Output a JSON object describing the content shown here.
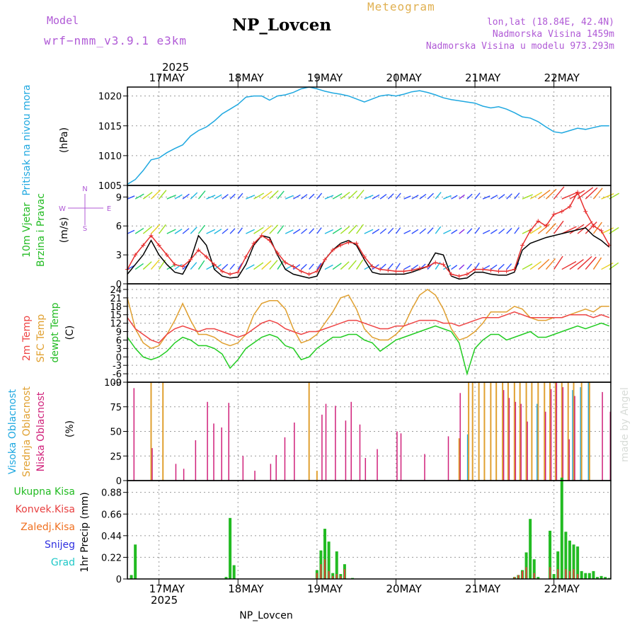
{
  "header": {
    "model_label": "Model",
    "model_name": "wrf−nmm_v3.9.1  e3km",
    "title": "NP_Lovcen",
    "meteogram_label": "Meteogram",
    "lonlat": "lon,lat (18.84E, 42.4N)",
    "altitude": "Nadmorska Visina 1459m",
    "model_altitude": "Nadmorska Visina u modelu 973.293m",
    "footer_station": "NP_Lovcen",
    "watermark": "made by Angel"
  },
  "colors": {
    "pressure": "#1fa8e0",
    "wind_speed": "#e83030",
    "wind_gust": "#000000",
    "temp2m": "#ee4444",
    "sfc_temp": "#e0a030",
    "dewpt": "#22cc22",
    "high_cloud": "#1fa8e0",
    "mid_cloud": "#e0a030",
    "low_cloud": "#d0207a",
    "total_precip": "#22bb22",
    "conv_precip": "#e84040",
    "frozen_precip": "#f07020",
    "snow": "#3030e0",
    "hail": "#20c8c8",
    "grid": "#999999",
    "label_purple": "#b05ad6"
  },
  "axis": {
    "year": "2025",
    "days": [
      "17MAY",
      "18MAY",
      "19MAY",
      "20MAY",
      "21MAY",
      "22MAY"
    ],
    "start_day_fraction": -0.4,
    "end_day_fraction": 5.72
  },
  "panels": {
    "pressure": {
      "label1": "Pritisak na nivou mora",
      "unit": "(hPa)",
      "ticks": [
        "1005",
        "1010",
        "1015",
        "1020"
      ],
      "ylim": [
        1005,
        1021.5
      ]
    },
    "wind": {
      "label1": "10m Vjetar",
      "label2": "Brzina i Pravac",
      "unit": "(m/s)",
      "ticks": [
        "0",
        "3",
        "6",
        "9"
      ],
      "ylim": [
        0,
        10.2
      ],
      "compass": {
        "n": "N",
        "w": "W",
        "e": "E",
        "s": "S"
      }
    },
    "temperature": {
      "label1": "2m Temp",
      "label2": "SFC Temp",
      "label3": "dewpt Temp",
      "unit": "(C)",
      "ticks": [
        "-9",
        "-6",
        "-3",
        "0",
        "3",
        "6",
        "9",
        "12",
        "15",
        "18",
        "21",
        "24"
      ],
      "ylim": [
        -9,
        26
      ]
    },
    "clouds": {
      "label1": "Visoka Oblacnost",
      "label2": "Srednja Oblacnost",
      "label3": "Niska Oblacnost",
      "unit": "(%)",
      "ticks": [
        "0",
        "25",
        "50",
        "75",
        "100"
      ],
      "ylim": [
        0,
        100
      ]
    },
    "precip": {
      "legend": [
        "Ukupna Kisa",
        "Konvek.Kisa",
        "Zaledj.Kisa",
        "Snijeg",
        "Grad"
      ],
      "unit": "1hr Precip (mm)",
      "ticks": [
        "0",
        "0.22",
        "0.44",
        "0.66",
        "0.88"
      ],
      "ylim": [
        0,
        1.0
      ]
    }
  },
  "chart_data": [
    {
      "type": "line",
      "title": "Pritisak na nivou mora",
      "ylabel": "hPa",
      "x_unit": "days since 17MAY 00UTC",
      "x": [
        -0.4,
        -0.3,
        -0.2,
        -0.1,
        0,
        0.1,
        0.2,
        0.3,
        0.4,
        0.5,
        0.6,
        0.7,
        0.8,
        0.9,
        1.0,
        1.1,
        1.2,
        1.3,
        1.4,
        1.5,
        1.6,
        1.7,
        1.8,
        1.9,
        2.0,
        2.1,
        2.2,
        2.3,
        2.4,
        2.5,
        2.6,
        2.7,
        2.8,
        2.9,
        3.0,
        3.1,
        3.2,
        3.3,
        3.4,
        3.5,
        3.6,
        3.7,
        3.8,
        3.9,
        4.0,
        4.1,
        4.2,
        4.3,
        4.4,
        4.5,
        4.6,
        4.7,
        4.8,
        4.9,
        5.0,
        5.1,
        5.2,
        5.3,
        5.4,
        5.5,
        5.6,
        5.7
      ],
      "values": [
        1005.2,
        1006.0,
        1007.5,
        1009.3,
        1009.6,
        1010.5,
        1011.2,
        1011.8,
        1013.3,
        1014.2,
        1014.8,
        1015.8,
        1017.0,
        1017.8,
        1018.6,
        1019.8,
        1020.0,
        1020.0,
        1019.3,
        1020.0,
        1020.2,
        1020.6,
        1021.2,
        1021.7,
        1021.2,
        1020.8,
        1020.5,
        1020.3,
        1020.0,
        1019.5,
        1019.0,
        1019.5,
        1020.0,
        1020.2,
        1020.0,
        1020.3,
        1020.7,
        1020.9,
        1020.6,
        1020.2,
        1019.7,
        1019.4,
        1019.2,
        1019.0,
        1018.8,
        1018.3,
        1018.0,
        1018.2,
        1017.8,
        1017.2,
        1016.5,
        1016.3,
        1015.7,
        1014.8,
        1014.0,
        1013.8,
        1014.2,
        1014.6,
        1014.4,
        1014.7,
        1015.0,
        1015.0
      ]
    },
    {
      "type": "line",
      "title": "10m Vjetar Brzina i Pravac",
      "ylabel": "m/s",
      "x": [
        -0.4,
        -0.3,
        -0.2,
        -0.1,
        0,
        0.1,
        0.2,
        0.3,
        0.4,
        0.5,
        0.6,
        0.7,
        0.8,
        0.9,
        1.0,
        1.1,
        1.2,
        1.3,
        1.4,
        1.5,
        1.6,
        1.7,
        1.8,
        1.9,
        2.0,
        2.1,
        2.2,
        2.3,
        2.4,
        2.5,
        2.6,
        2.7,
        2.8,
        2.9,
        3.0,
        3.1,
        3.2,
        3.3,
        3.4,
        3.5,
        3.6,
        3.7,
        3.8,
        3.9,
        4.0,
        4.1,
        4.2,
        4.3,
        4.4,
        4.5,
        4.6,
        4.7,
        4.8,
        4.9,
        5.0,
        5.1,
        5.2,
        5.3,
        5.4,
        5.5,
        5.6,
        5.7
      ],
      "series": [
        {
          "name": "wind speed",
          "values": [
            1.5,
            3.0,
            4.0,
            5.0,
            4.0,
            3.0,
            2.0,
            1.8,
            2.5,
            3.5,
            2.8,
            2.0,
            1.3,
            1.0,
            1.2,
            2.8,
            4.2,
            5.0,
            4.5,
            3.2,
            2.2,
            1.8,
            1.3,
            1.0,
            1.3,
            2.5,
            3.5,
            4.0,
            4.3,
            4.2,
            2.8,
            1.8,
            1.5,
            1.4,
            1.3,
            1.3,
            1.4,
            1.6,
            1.8,
            2.2,
            2.0,
            1.0,
            0.8,
            1.0,
            1.5,
            1.5,
            1.4,
            1.3,
            1.3,
            1.5,
            4.0,
            5.5,
            6.5,
            6.0,
            7.2,
            7.5,
            8.0,
            9.5,
            7.5,
            6.0,
            5.5,
            4.0
          ]
        },
        {
          "name": "gust",
          "values": [
            1.0,
            2.0,
            3.0,
            4.5,
            3.0,
            2.0,
            1.2,
            1.0,
            2.5,
            5.0,
            4.0,
            1.5,
            0.8,
            0.6,
            0.7,
            2.0,
            4.0,
            5.0,
            4.8,
            3.0,
            1.5,
            1.0,
            0.8,
            0.6,
            0.8,
            2.5,
            3.5,
            4.2,
            4.5,
            4.0,
            2.5,
            1.2,
            1.0,
            1.0,
            1.0,
            1.0,
            1.2,
            1.5,
            1.8,
            3.2,
            3.0,
            0.8,
            0.5,
            0.6,
            1.2,
            1.2,
            1.0,
            0.9,
            0.9,
            1.2,
            3.5,
            4.2,
            4.5,
            4.8,
            5.0,
            5.2,
            5.4,
            5.6,
            5.8,
            5.0,
            4.5,
            3.8
          ]
        }
      ]
    },
    {
      "type": "line",
      "title": "2m Temp / SFC Temp / dewpt Temp",
      "ylabel": "C",
      "x": [
        -0.4,
        -0.3,
        -0.2,
        -0.1,
        0,
        0.1,
        0.2,
        0.3,
        0.4,
        0.5,
        0.6,
        0.7,
        0.8,
        0.9,
        1.0,
        1.1,
        1.2,
        1.3,
        1.4,
        1.5,
        1.6,
        1.7,
        1.8,
        1.9,
        2.0,
        2.1,
        2.2,
        2.3,
        2.4,
        2.5,
        2.6,
        2.7,
        2.8,
        2.9,
        3.0,
        3.1,
        3.2,
        3.3,
        3.4,
        3.5,
        3.6,
        3.7,
        3.8,
        3.9,
        4.0,
        4.1,
        4.2,
        4.3,
        4.4,
        4.5,
        4.6,
        4.7,
        4.8,
        4.9,
        5.0,
        5.1,
        5.2,
        5.3,
        5.4,
        5.5,
        5.6,
        5.7
      ],
      "series": [
        {
          "name": "2m Temp",
          "values": [
            14,
            10,
            8,
            6,
            5,
            8,
            10,
            11,
            10,
            9,
            10,
            10,
            9,
            8,
            7,
            8,
            10,
            12,
            13,
            12,
            10,
            9,
            8,
            9,
            9,
            10,
            11,
            12,
            13,
            13,
            12,
            11,
            10,
            10,
            11,
            11,
            12,
            13,
            13,
            13,
            12,
            12,
            11,
            12,
            13,
            14,
            14,
            14,
            15,
            16,
            15,
            14,
            14,
            14,
            14,
            14,
            15,
            15,
            15,
            14,
            15,
            14
          ]
        },
        {
          "name": "SFC Temp",
          "values": [
            21,
            10,
            5,
            3,
            4,
            8,
            13,
            19,
            13,
            8,
            8,
            7,
            5,
            4,
            5,
            8,
            15,
            19,
            20,
            20,
            17,
            10,
            5,
            6,
            8,
            12,
            16,
            21,
            22,
            17,
            10,
            7,
            6,
            6,
            8,
            11,
            17,
            22,
            24,
            22,
            17,
            10,
            6,
            7,
            9,
            12,
            16,
            16,
            16,
            18,
            17,
            14,
            13,
            13,
            14,
            14,
            15,
            16,
            17,
            16,
            18,
            18
          ]
        },
        {
          "name": "dewpt Temp",
          "values": [
            7,
            3,
            0,
            -1,
            0,
            2,
            5,
            7,
            6,
            4,
            4,
            3,
            1,
            -4,
            -1,
            3,
            5,
            7,
            8,
            7,
            4,
            3,
            -1,
            0,
            3,
            5,
            7,
            7,
            8,
            8,
            6,
            5,
            2,
            4,
            6,
            7,
            8,
            9,
            10,
            11,
            10,
            9,
            5,
            -6,
            3,
            6,
            8,
            8,
            6,
            7,
            8,
            9,
            7,
            7,
            8,
            9,
            10,
            11,
            10,
            11,
            12,
            11
          ]
        }
      ]
    },
    {
      "type": "bar",
      "title": "Oblacnost (%)",
      "x": [
        -0.33,
        -0.1,
        0.05,
        0.2,
        0.3,
        0.45,
        0.6,
        0.68,
        0.78,
        0.87,
        1.05,
        1.2,
        1.4,
        1.47,
        1.58,
        1.7,
        1.9,
        2.0,
        2.05,
        2.1,
        2.22,
        2.35,
        2.42,
        2.53,
        2.6,
        2.75,
        2.82,
        3.0,
        3.05,
        3.35,
        3.65,
        3.8,
        3.92,
        3.97,
        4.05,
        4.12,
        4.2,
        4.27,
        4.35,
        4.42,
        4.5,
        4.57,
        4.65,
        4.72,
        4.8,
        4.88,
        4.95,
        5.02,
        5.1,
        5.18,
        5.25,
        5.35,
        5.45,
        5.6,
        5.7
      ],
      "series": [
        {
          "name": "Visoka Oblacnost",
          "values": [
            0,
            0,
            0,
            0,
            0,
            0,
            0,
            0,
            0,
            0,
            0,
            0,
            0,
            0,
            0,
            0,
            0,
            0,
            0,
            0,
            0,
            0,
            0,
            0,
            0,
            0,
            0,
            0,
            0,
            0,
            0,
            0,
            47,
            0,
            0,
            0,
            0,
            0,
            0,
            0,
            0,
            0,
            0,
            0,
            78,
            0,
            0,
            0,
            0,
            0,
            92,
            95,
            100,
            0,
            0
          ]
        },
        {
          "name": "Srednja Oblacnost",
          "values": [
            0,
            100,
            100,
            0,
            0,
            0,
            0,
            0,
            0,
            0,
            0,
            0,
            0,
            0,
            0,
            0,
            100,
            10,
            0,
            0,
            0,
            0,
            0,
            0,
            0,
            0,
            0,
            0,
            0,
            0,
            0,
            43,
            100,
            100,
            100,
            100,
            100,
            100,
            100,
            100,
            100,
            100,
            100,
            100,
            100,
            100,
            100,
            100,
            100,
            100,
            100,
            100,
            100,
            0,
            0
          ]
        },
        {
          "name": "Niska Oblacnost",
          "values": [
            94,
            33,
            0,
            17,
            12,
            41,
            80,
            58,
            54,
            79,
            25,
            10,
            17,
            26,
            44,
            59,
            0,
            0,
            67,
            78,
            76,
            61,
            80,
            57,
            23,
            32,
            0,
            50,
            48,
            27,
            45,
            89,
            0,
            0,
            0,
            0,
            0,
            0,
            92,
            84,
            80,
            78,
            60,
            0,
            0,
            70,
            93,
            100,
            95,
            42,
            86,
            0,
            0,
            90,
            70
          ]
        }
      ]
    },
    {
      "type": "bar",
      "title": "1hr Precip (mm)",
      "x": [
        -0.35,
        -0.3,
        0.85,
        0.9,
        0.95,
        2.0,
        2.05,
        2.1,
        2.15,
        2.2,
        2.25,
        2.3,
        2.35,
        2.45,
        4.5,
        4.55,
        4.6,
        4.65,
        4.7,
        4.75,
        4.8,
        4.95,
        5.0,
        5.05,
        5.1,
        5.15,
        5.2,
        5.25,
        5.3,
        5.35,
        5.4,
        5.45,
        5.5,
        5.55,
        5.6,
        5.65,
        5.7
      ],
      "series": [
        {
          "name": "Ukupna Kisa",
          "values": [
            0.04,
            0.35,
            0.02,
            0.62,
            0.14,
            0.09,
            0.29,
            0.51,
            0.38,
            0.06,
            0.28,
            0.05,
            0.15,
            0.01,
            0.02,
            0.04,
            0.09,
            0.27,
            0.61,
            0.2,
            0.02,
            0.49,
            0.05,
            0.28,
            1.03,
            0.48,
            0.39,
            0.35,
            0.33,
            0.08,
            0.06,
            0.06,
            0.08,
            0.02,
            0.03,
            0.02,
            0.01
          ]
        },
        {
          "name": "Konvek.Kisa",
          "values": [
            0.0,
            0.0,
            0.0,
            0.0,
            0.0,
            0.06,
            0.15,
            0.2,
            0.08,
            0.03,
            0.05,
            0.03,
            0.1,
            0.0,
            0.02,
            0.04,
            0.08,
            0.12,
            0.0,
            0.06,
            0.0,
            0.12,
            0.0,
            0.1,
            0.0,
            0.1,
            0.08,
            0.1,
            0.05,
            0.0,
            0.0,
            0.0,
            0.0,
            0.0,
            0.0,
            0.0,
            0.0
          ]
        },
        {
          "name": "Zaledj.Kisa",
          "values": [
            0,
            0,
            0,
            0,
            0,
            0,
            0,
            0,
            0,
            0,
            0,
            0,
            0,
            0,
            0,
            0,
            0,
            0,
            0,
            0,
            0,
            0,
            0,
            0,
            0,
            0,
            0,
            0,
            0,
            0,
            0,
            0,
            0,
            0,
            0,
            0,
            0
          ]
        },
        {
          "name": "Snijeg",
          "values": [
            0,
            0,
            0,
            0,
            0,
            0,
            0,
            0,
            0,
            0,
            0,
            0,
            0,
            0,
            0,
            0,
            0,
            0,
            0,
            0,
            0,
            0,
            0,
            0,
            0,
            0,
            0,
            0,
            0,
            0,
            0,
            0,
            0,
            0,
            0,
            0,
            0
          ]
        },
        {
          "name": "Grad",
          "values": [
            0,
            0,
            0,
            0,
            0,
            0,
            0,
            0,
            0,
            0,
            0,
            0,
            0,
            0,
            0,
            0,
            0,
            0,
            0,
            0,
            0,
            0,
            0,
            0,
            0,
            0,
            0,
            0,
            0,
            0,
            0,
            0,
            0,
            0,
            0,
            0,
            0
          ]
        }
      ]
    }
  ]
}
